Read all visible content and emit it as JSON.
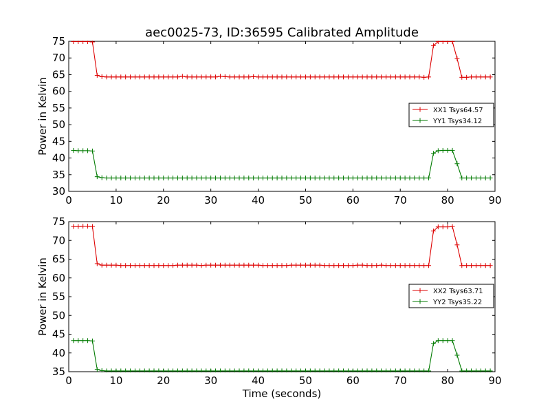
{
  "chart_data": [
    {
      "type": "line",
      "title": "aec0025-73, ID:36595 Calibrated Amplitude",
      "xlabel": "",
      "ylabel": "Power in Kelvin",
      "xlim": [
        0,
        90
      ],
      "ylim": [
        30,
        75
      ],
      "xticks": [
        0,
        10,
        20,
        30,
        40,
        50,
        60,
        70,
        80,
        90
      ],
      "yticks": [
        30,
        35,
        40,
        45,
        50,
        55,
        60,
        65,
        70,
        75
      ],
      "grid": false,
      "legend_position": "right",
      "x": [
        1,
        2,
        3,
        4,
        5,
        6,
        7,
        8,
        9,
        10,
        11,
        12,
        13,
        14,
        15,
        16,
        17,
        18,
        19,
        20,
        21,
        22,
        23,
        24,
        25,
        26,
        27,
        28,
        29,
        30,
        31,
        32,
        33,
        34,
        35,
        36,
        37,
        38,
        39,
        40,
        41,
        42,
        43,
        44,
        45,
        46,
        47,
        48,
        49,
        50,
        51,
        52,
        53,
        54,
        55,
        56,
        57,
        58,
        59,
        60,
        61,
        62,
        63,
        64,
        65,
        66,
        67,
        68,
        69,
        70,
        71,
        72,
        73,
        74,
        75,
        76,
        77,
        78,
        79,
        80,
        81,
        82,
        83,
        84,
        85,
        86,
        87,
        88,
        89
      ],
      "series": [
        {
          "name": "XX1 Tsys64.57",
          "color": "#dd0000",
          "values": [
            74.9,
            74.9,
            74.9,
            74.9,
            74.8,
            64.8,
            64.4,
            64.3,
            64.3,
            64.3,
            64.3,
            64.3,
            64.3,
            64.3,
            64.3,
            64.3,
            64.3,
            64.3,
            64.3,
            64.3,
            64.3,
            64.3,
            64.3,
            64.5,
            64.3,
            64.3,
            64.3,
            64.3,
            64.3,
            64.3,
            64.3,
            64.5,
            64.4,
            64.3,
            64.3,
            64.3,
            64.3,
            64.3,
            64.4,
            64.3,
            64.3,
            64.3,
            64.3,
            64.3,
            64.3,
            64.3,
            64.3,
            64.3,
            64.3,
            64.3,
            64.3,
            64.3,
            64.3,
            64.3,
            64.3,
            64.3,
            64.3,
            64.3,
            64.3,
            64.3,
            64.3,
            64.3,
            64.3,
            64.3,
            64.3,
            64.3,
            64.3,
            64.3,
            64.3,
            64.3,
            64.3,
            64.3,
            64.3,
            64.3,
            64.2,
            64.3,
            73.7,
            74.9,
            74.9,
            74.9,
            74.9,
            69.8,
            64.2,
            64.2,
            64.3,
            64.3,
            64.3,
            64.3,
            64.3
          ]
        },
        {
          "name": "YY1 Tsys34.12",
          "color": "#007a00",
          "values": [
            42.3,
            42.2,
            42.2,
            42.2,
            42.1,
            34.4,
            34.1,
            34.0,
            34.0,
            34.0,
            34.0,
            34.0,
            34.0,
            34.0,
            34.0,
            34.0,
            34.0,
            34.0,
            34.0,
            34.0,
            34.0,
            34.0,
            34.0,
            34.0,
            34.0,
            34.0,
            34.0,
            34.0,
            34.0,
            34.0,
            34.0,
            34.0,
            34.0,
            34.0,
            34.0,
            34.0,
            34.0,
            34.0,
            34.0,
            34.0,
            34.0,
            34.0,
            34.0,
            34.0,
            34.0,
            34.0,
            34.0,
            34.0,
            34.0,
            34.0,
            34.0,
            34.0,
            34.0,
            34.0,
            34.0,
            34.0,
            34.0,
            34.0,
            34.0,
            34.0,
            34.0,
            34.0,
            34.0,
            34.0,
            34.0,
            34.0,
            34.0,
            34.0,
            34.0,
            34.0,
            34.0,
            34.0,
            34.0,
            34.0,
            34.0,
            34.0,
            41.4,
            42.2,
            42.3,
            42.3,
            42.3,
            38.3,
            34.0,
            34.0,
            34.0,
            34.0,
            34.0,
            34.0,
            34.0
          ]
        }
      ]
    },
    {
      "type": "line",
      "title": "",
      "xlabel": "Time (seconds)",
      "ylabel": "Power in Kelvin",
      "xlim": [
        0,
        90
      ],
      "ylim": [
        35,
        75
      ],
      "xticks": [
        0,
        10,
        20,
        30,
        40,
        50,
        60,
        70,
        80,
        90
      ],
      "yticks": [
        35,
        40,
        45,
        50,
        55,
        60,
        65,
        70,
        75
      ],
      "grid": false,
      "legend_position": "right",
      "x": [
        1,
        2,
        3,
        4,
        5,
        6,
        7,
        8,
        9,
        10,
        11,
        12,
        13,
        14,
        15,
        16,
        17,
        18,
        19,
        20,
        21,
        22,
        23,
        24,
        25,
        26,
        27,
        28,
        29,
        30,
        31,
        32,
        33,
        34,
        35,
        36,
        37,
        38,
        39,
        40,
        41,
        42,
        43,
        44,
        45,
        46,
        47,
        48,
        49,
        50,
        51,
        52,
        53,
        54,
        55,
        56,
        57,
        58,
        59,
        60,
        61,
        62,
        63,
        64,
        65,
        66,
        67,
        68,
        69,
        70,
        71,
        72,
        73,
        74,
        75,
        76,
        77,
        78,
        79,
        80,
        81,
        82,
        83,
        84,
        85,
        86,
        87,
        88,
        89
      ],
      "series": [
        {
          "name": "XX2 Tsys63.71",
          "color": "#dd0000",
          "values": [
            73.7,
            73.7,
            73.8,
            73.8,
            73.7,
            63.8,
            63.4,
            63.4,
            63.4,
            63.4,
            63.3,
            63.3,
            63.3,
            63.3,
            63.3,
            63.3,
            63.3,
            63.3,
            63.3,
            63.3,
            63.3,
            63.3,
            63.4,
            63.4,
            63.4,
            63.4,
            63.4,
            63.3,
            63.4,
            63.4,
            63.4,
            63.4,
            63.4,
            63.4,
            63.4,
            63.4,
            63.4,
            63.4,
            63.4,
            63.4,
            63.3,
            63.3,
            63.3,
            63.3,
            63.3,
            63.3,
            63.4,
            63.4,
            63.4,
            63.4,
            63.4,
            63.4,
            63.4,
            63.3,
            63.3,
            63.3,
            63.3,
            63.3,
            63.3,
            63.3,
            63.4,
            63.4,
            63.3,
            63.3,
            63.3,
            63.4,
            63.3,
            63.3,
            63.3,
            63.3,
            63.3,
            63.3,
            63.3,
            63.3,
            63.3,
            63.3,
            72.5,
            73.6,
            73.6,
            73.6,
            73.7,
            68.8,
            63.3,
            63.3,
            63.3,
            63.3,
            63.3,
            63.3,
            63.3
          ]
        },
        {
          "name": "YY2 Tsys35.22",
          "color": "#007a00",
          "values": [
            43.3,
            43.3,
            43.3,
            43.3,
            43.2,
            35.6,
            35.3,
            35.2,
            35.2,
            35.2,
            35.2,
            35.2,
            35.2,
            35.2,
            35.2,
            35.2,
            35.2,
            35.2,
            35.2,
            35.2,
            35.2,
            35.2,
            35.2,
            35.2,
            35.2,
            35.2,
            35.2,
            35.2,
            35.2,
            35.2,
            35.2,
            35.2,
            35.2,
            35.2,
            35.2,
            35.2,
            35.2,
            35.2,
            35.2,
            35.2,
            35.2,
            35.2,
            35.2,
            35.2,
            35.2,
            35.2,
            35.2,
            35.2,
            35.2,
            35.2,
            35.2,
            35.2,
            35.2,
            35.2,
            35.2,
            35.2,
            35.2,
            35.2,
            35.2,
            35.2,
            35.2,
            35.2,
            35.2,
            35.2,
            35.2,
            35.2,
            35.2,
            35.2,
            35.2,
            35.2,
            35.2,
            35.2,
            35.2,
            35.2,
            35.2,
            35.2,
            42.5,
            43.3,
            43.3,
            43.3,
            43.3,
            39.4,
            35.2,
            35.2,
            35.2,
            35.2,
            35.2,
            35.2,
            35.2
          ]
        }
      ]
    }
  ]
}
